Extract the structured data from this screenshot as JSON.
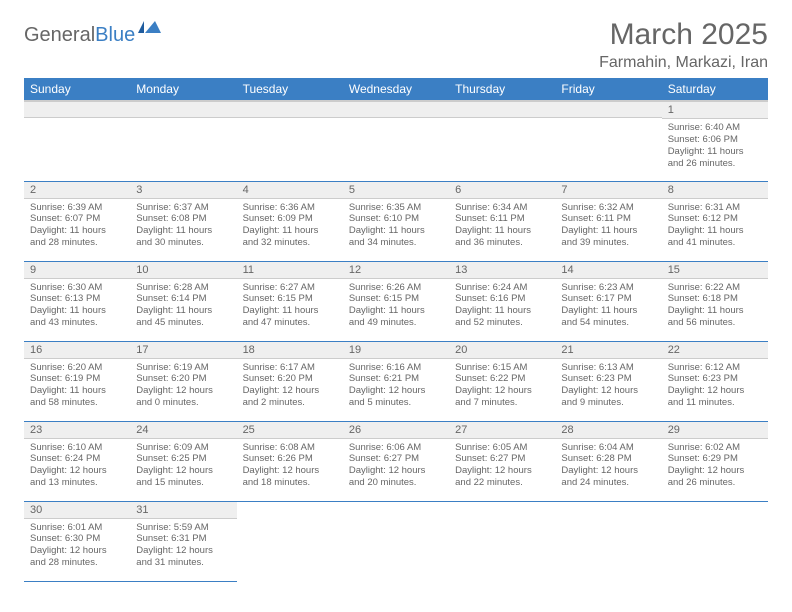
{
  "header": {
    "logo_general": "General",
    "logo_blue": "Blue",
    "title": "March 2025",
    "location": "Farmahin, Markazi, Iran"
  },
  "colors": {
    "header_bg": "#3b7fc4",
    "header_text": "#ffffff",
    "daynum_bg": "#efefef",
    "row_border": "#3b7fc4",
    "text": "#666666"
  },
  "day_labels": [
    "Sunday",
    "Monday",
    "Tuesday",
    "Wednesday",
    "Thursday",
    "Friday",
    "Saturday"
  ],
  "weeks": [
    [
      {
        "n": "",
        "sr": "",
        "ss": "",
        "dl": ""
      },
      {
        "n": "",
        "sr": "",
        "ss": "",
        "dl": ""
      },
      {
        "n": "",
        "sr": "",
        "ss": "",
        "dl": ""
      },
      {
        "n": "",
        "sr": "",
        "ss": "",
        "dl": ""
      },
      {
        "n": "",
        "sr": "",
        "ss": "",
        "dl": ""
      },
      {
        "n": "",
        "sr": "",
        "ss": "",
        "dl": ""
      },
      {
        "n": "1",
        "sr": "Sunrise: 6:40 AM",
        "ss": "Sunset: 6:06 PM",
        "dl": "Daylight: 11 hours and 26 minutes."
      }
    ],
    [
      {
        "n": "2",
        "sr": "Sunrise: 6:39 AM",
        "ss": "Sunset: 6:07 PM",
        "dl": "Daylight: 11 hours and 28 minutes."
      },
      {
        "n": "3",
        "sr": "Sunrise: 6:37 AM",
        "ss": "Sunset: 6:08 PM",
        "dl": "Daylight: 11 hours and 30 minutes."
      },
      {
        "n": "4",
        "sr": "Sunrise: 6:36 AM",
        "ss": "Sunset: 6:09 PM",
        "dl": "Daylight: 11 hours and 32 minutes."
      },
      {
        "n": "5",
        "sr": "Sunrise: 6:35 AM",
        "ss": "Sunset: 6:10 PM",
        "dl": "Daylight: 11 hours and 34 minutes."
      },
      {
        "n": "6",
        "sr": "Sunrise: 6:34 AM",
        "ss": "Sunset: 6:11 PM",
        "dl": "Daylight: 11 hours and 36 minutes."
      },
      {
        "n": "7",
        "sr": "Sunrise: 6:32 AM",
        "ss": "Sunset: 6:11 PM",
        "dl": "Daylight: 11 hours and 39 minutes."
      },
      {
        "n": "8",
        "sr": "Sunrise: 6:31 AM",
        "ss": "Sunset: 6:12 PM",
        "dl": "Daylight: 11 hours and 41 minutes."
      }
    ],
    [
      {
        "n": "9",
        "sr": "Sunrise: 6:30 AM",
        "ss": "Sunset: 6:13 PM",
        "dl": "Daylight: 11 hours and 43 minutes."
      },
      {
        "n": "10",
        "sr": "Sunrise: 6:28 AM",
        "ss": "Sunset: 6:14 PM",
        "dl": "Daylight: 11 hours and 45 minutes."
      },
      {
        "n": "11",
        "sr": "Sunrise: 6:27 AM",
        "ss": "Sunset: 6:15 PM",
        "dl": "Daylight: 11 hours and 47 minutes."
      },
      {
        "n": "12",
        "sr": "Sunrise: 6:26 AM",
        "ss": "Sunset: 6:15 PM",
        "dl": "Daylight: 11 hours and 49 minutes."
      },
      {
        "n": "13",
        "sr": "Sunrise: 6:24 AM",
        "ss": "Sunset: 6:16 PM",
        "dl": "Daylight: 11 hours and 52 minutes."
      },
      {
        "n": "14",
        "sr": "Sunrise: 6:23 AM",
        "ss": "Sunset: 6:17 PM",
        "dl": "Daylight: 11 hours and 54 minutes."
      },
      {
        "n": "15",
        "sr": "Sunrise: 6:22 AM",
        "ss": "Sunset: 6:18 PM",
        "dl": "Daylight: 11 hours and 56 minutes."
      }
    ],
    [
      {
        "n": "16",
        "sr": "Sunrise: 6:20 AM",
        "ss": "Sunset: 6:19 PM",
        "dl": "Daylight: 11 hours and 58 minutes."
      },
      {
        "n": "17",
        "sr": "Sunrise: 6:19 AM",
        "ss": "Sunset: 6:20 PM",
        "dl": "Daylight: 12 hours and 0 minutes."
      },
      {
        "n": "18",
        "sr": "Sunrise: 6:17 AM",
        "ss": "Sunset: 6:20 PM",
        "dl": "Daylight: 12 hours and 2 minutes."
      },
      {
        "n": "19",
        "sr": "Sunrise: 6:16 AM",
        "ss": "Sunset: 6:21 PM",
        "dl": "Daylight: 12 hours and 5 minutes."
      },
      {
        "n": "20",
        "sr": "Sunrise: 6:15 AM",
        "ss": "Sunset: 6:22 PM",
        "dl": "Daylight: 12 hours and 7 minutes."
      },
      {
        "n": "21",
        "sr": "Sunrise: 6:13 AM",
        "ss": "Sunset: 6:23 PM",
        "dl": "Daylight: 12 hours and 9 minutes."
      },
      {
        "n": "22",
        "sr": "Sunrise: 6:12 AM",
        "ss": "Sunset: 6:23 PM",
        "dl": "Daylight: 12 hours and 11 minutes."
      }
    ],
    [
      {
        "n": "23",
        "sr": "Sunrise: 6:10 AM",
        "ss": "Sunset: 6:24 PM",
        "dl": "Daylight: 12 hours and 13 minutes."
      },
      {
        "n": "24",
        "sr": "Sunrise: 6:09 AM",
        "ss": "Sunset: 6:25 PM",
        "dl": "Daylight: 12 hours and 15 minutes."
      },
      {
        "n": "25",
        "sr": "Sunrise: 6:08 AM",
        "ss": "Sunset: 6:26 PM",
        "dl": "Daylight: 12 hours and 18 minutes."
      },
      {
        "n": "26",
        "sr": "Sunrise: 6:06 AM",
        "ss": "Sunset: 6:27 PM",
        "dl": "Daylight: 12 hours and 20 minutes."
      },
      {
        "n": "27",
        "sr": "Sunrise: 6:05 AM",
        "ss": "Sunset: 6:27 PM",
        "dl": "Daylight: 12 hours and 22 minutes."
      },
      {
        "n": "28",
        "sr": "Sunrise: 6:04 AM",
        "ss": "Sunset: 6:28 PM",
        "dl": "Daylight: 12 hours and 24 minutes."
      },
      {
        "n": "29",
        "sr": "Sunrise: 6:02 AM",
        "ss": "Sunset: 6:29 PM",
        "dl": "Daylight: 12 hours and 26 minutes."
      }
    ],
    [
      {
        "n": "30",
        "sr": "Sunrise: 6:01 AM",
        "ss": "Sunset: 6:30 PM",
        "dl": "Daylight: 12 hours and 28 minutes."
      },
      {
        "n": "31",
        "sr": "Sunrise: 5:59 AM",
        "ss": "Sunset: 6:31 PM",
        "dl": "Daylight: 12 hours and 31 minutes."
      },
      {
        "n": "",
        "sr": "",
        "ss": "",
        "dl": ""
      },
      {
        "n": "",
        "sr": "",
        "ss": "",
        "dl": ""
      },
      {
        "n": "",
        "sr": "",
        "ss": "",
        "dl": ""
      },
      {
        "n": "",
        "sr": "",
        "ss": "",
        "dl": ""
      },
      {
        "n": "",
        "sr": "",
        "ss": "",
        "dl": ""
      }
    ]
  ]
}
